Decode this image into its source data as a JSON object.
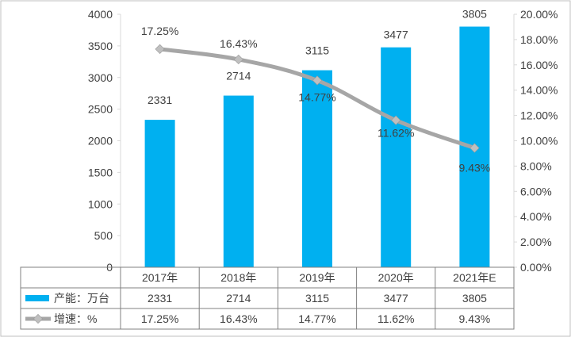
{
  "chart_data": {
    "type": "bar",
    "categories": [
      "2017年",
      "2018年",
      "2019年",
      "2020年",
      "2021年E"
    ],
    "series": [
      {
        "name": "产能：万台",
        "type": "bar",
        "axis": "left",
        "values": [
          2331,
          2714,
          3115,
          3477,
          3805
        ],
        "labels": [
          "2331",
          "2714",
          "3115",
          "3477",
          "3805"
        ]
      },
      {
        "name": "增速：%",
        "type": "line",
        "axis": "right",
        "values": [
          17.25,
          16.43,
          14.77,
          11.62,
          9.43
        ],
        "labels": [
          "17.25%",
          "16.43%",
          "14.77%",
          "11.62%",
          "9.43%"
        ]
      }
    ],
    "y_left": {
      "min": 0,
      "max": 4000,
      "ticks": [
        "0",
        "500",
        "1000",
        "1500",
        "2000",
        "2500",
        "3000",
        "3500",
        "4000"
      ]
    },
    "y_right": {
      "min": 0,
      "max": 20,
      "ticks": [
        "0.00%",
        "2.00%",
        "4.00%",
        "6.00%",
        "8.00%",
        "10.00%",
        "12.00%",
        "14.00%",
        "16.00%",
        "18.00%",
        "20.00%"
      ]
    },
    "data_table": true,
    "grid": false,
    "colors": {
      "bar": "#00b0f0",
      "line": "#a6a6a6",
      "marker": "#bfbfbf",
      "axis": "#d9d9d9",
      "text": "#404040"
    }
  }
}
